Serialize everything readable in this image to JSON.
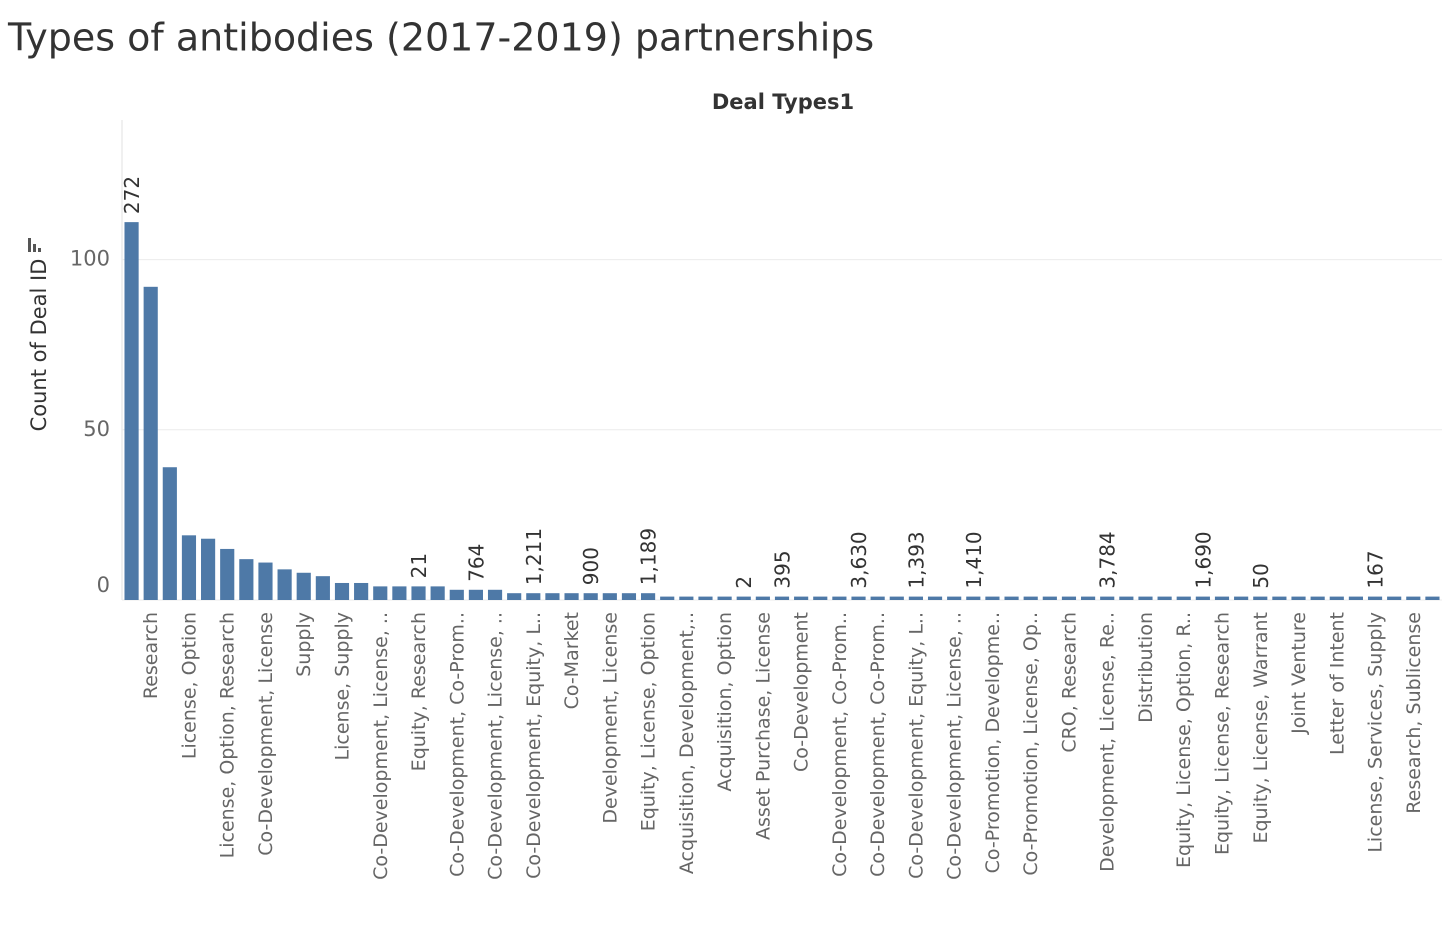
{
  "chart_data": {
    "type": "bar",
    "title": "Types of antibodies (2017-2019) partnerships",
    "column_header": "Deal Types1",
    "y_label": "Count of Deal ID",
    "color": "#4e79a7",
    "grid": true,
    "ylim": [
      0,
      141
    ],
    "yticks": [
      0,
      50,
      100
    ],
    "categories": [
      null,
      "Research",
      null,
      "License, Option",
      null,
      "License, Option, Research",
      null,
      "Co-Development, License",
      null,
      "Supply",
      null,
      "License, Supply",
      null,
      "Co-Development, License, ..",
      null,
      "Equity, Research",
      null,
      "Co-Development, Co-Prom..",
      null,
      "Co-Development, License, ..",
      null,
      "Co-Development, Equity, L..",
      null,
      "Co-Market",
      null,
      "Development, License",
      null,
      "Equity, License, Option",
      null,
      "Acquisition, Development,..",
      null,
      "Acquisition, Option",
      null,
      "Asset Purchase, License",
      null,
      "Co-Development",
      null,
      "Co-Development, Co-Prom..",
      null,
      "Co-Development, Co-Prom..",
      null,
      "Co-Development, Equity, L..",
      null,
      "Co-Development, License, ..",
      null,
      "Co-Promotion, Developme..",
      null,
      "Co-Promotion, License, Op..",
      null,
      "CRO, Research",
      null,
      "Development, License, Re..",
      null,
      "Distribution",
      null,
      "Equity, License, Option, R..",
      null,
      "Equity, License, Research",
      null,
      "Equity, License, Warrant",
      null,
      "Joint Venture",
      null,
      "Letter of Intent",
      null,
      "License, Services, Supply",
      null,
      "Research, Sublicense",
      null
    ],
    "values": [
      111,
      92,
      39,
      19,
      18,
      15,
      12,
      11,
      9,
      8,
      7,
      5,
      5,
      4,
      4,
      4,
      4,
      3,
      3,
      3,
      2,
      2,
      2,
      2,
      2,
      2,
      2,
      2,
      1,
      1,
      1,
      1,
      1,
      1,
      1,
      1,
      1,
      1,
      1,
      1,
      1,
      1,
      1,
      1,
      1,
      1,
      1,
      1,
      1,
      1,
      1,
      1,
      1,
      1,
      1,
      1,
      1,
      1,
      1,
      1,
      1,
      1,
      1,
      1,
      1,
      1,
      1,
      1,
      1
    ],
    "bar_labels": [
      "272",
      null,
      null,
      null,
      null,
      null,
      null,
      null,
      null,
      null,
      null,
      null,
      null,
      null,
      null,
      "21",
      null,
      null,
      "764",
      null,
      null,
      "1,211",
      null,
      null,
      "900",
      null,
      null,
      "1,189",
      null,
      null,
      null,
      null,
      "2",
      null,
      "395",
      null,
      null,
      null,
      "3,630",
      null,
      null,
      "1,393",
      null,
      null,
      "1,410",
      null,
      null,
      null,
      null,
      null,
      null,
      "3,784",
      null,
      null,
      null,
      null,
      "1,690",
      null,
      null,
      "50",
      null,
      null,
      null,
      null,
      null,
      "167",
      null,
      null,
      null
    ]
  }
}
